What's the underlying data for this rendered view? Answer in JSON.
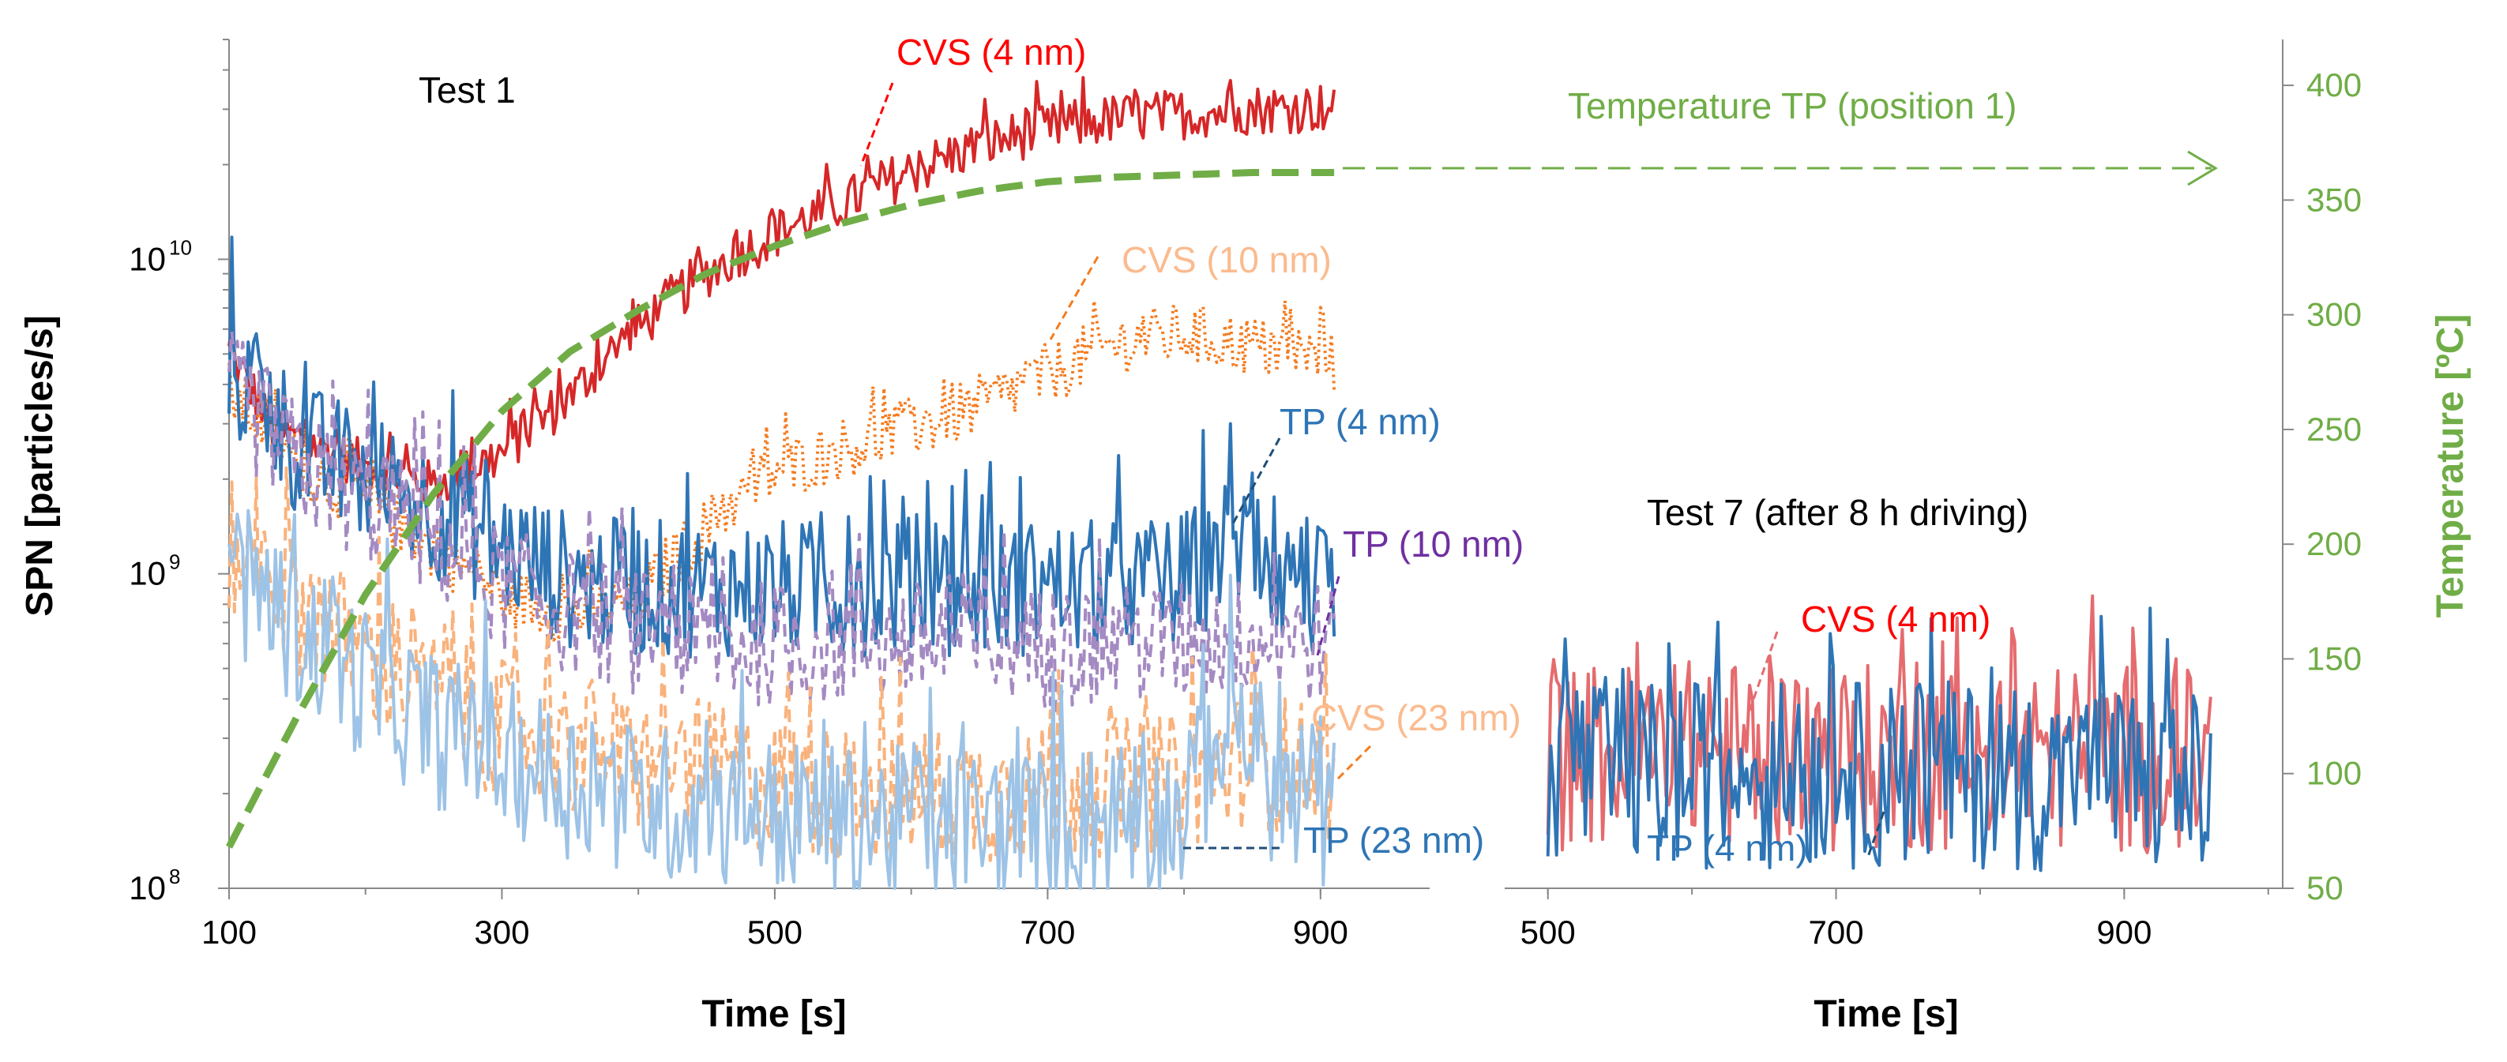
{
  "chart_data": {
    "type": "line",
    "y_axis": {
      "label": "SPN [particles/s]",
      "scale": "log",
      "range": [
        100000000.0,
        50000000000.0
      ],
      "ticks": [
        {
          "value": 100000000.0,
          "base": "10",
          "exp": "8"
        },
        {
          "value": 1000000000.0,
          "base": "10",
          "exp": "9"
        },
        {
          "value": 10000000000.0,
          "base": "10",
          "exp": "10"
        }
      ]
    },
    "y2_axis": {
      "label": "Temperature [ºC]",
      "range": [
        50,
        420
      ],
      "ticks": [
        "400",
        "350",
        "300",
        "250",
        "200",
        "150",
        "100",
        "50"
      ],
      "tick_values": [
        400,
        350,
        300,
        250,
        200,
        150,
        100,
        50
      ]
    },
    "panels": [
      {
        "title": "Test 1",
        "xlabel": "Time [s]",
        "xlim": [
          100,
          980
        ],
        "x_ticks": [
          "100",
          "300",
          "500",
          "700",
          "900"
        ],
        "x_tick_values": [
          100,
          300,
          500,
          700,
          900
        ],
        "series": [
          {
            "name": "CVS (4 nm)",
            "color": "#d62728",
            "style": "solid",
            "points": [
              [
                100,
                5000000000.0
              ],
              [
                130,
                2900000000.0
              ],
              [
                200,
                2200000000.0
              ],
              [
                250,
                1900000000.0
              ],
              [
                300,
                2400000000.0
              ],
              [
                350,
                3600000000.0
              ],
              [
                400,
                6000000000.0
              ],
              [
                450,
                9000000000.0
              ],
              [
                500,
                12000000000.0
              ],
              [
                550,
                15000000000.0
              ],
              [
                600,
                19000000000.0
              ],
              [
                650,
                23000000000.0
              ],
              [
                700,
                26000000000.0
              ],
              [
                750,
                28000000000.0
              ],
              [
                800,
                29000000000.0
              ],
              [
                850,
                30000000000.0
              ],
              [
                910,
                30500000000.0
              ]
            ]
          },
          {
            "name": "CVS (10 nm)",
            "color": "#f47c20",
            "style": "dotted",
            "points": [
              [
                100,
                3800000000.0
              ],
              [
                150,
                2200000000.0
              ],
              [
                200,
                1700000000.0
              ],
              [
                250,
                1200000000.0
              ],
              [
                300,
                850000000.0
              ],
              [
                350,
                750000000.0
              ],
              [
                400,
                800000000.0
              ],
              [
                450,
                1400000000.0
              ],
              [
                500,
                2100000000.0
              ],
              [
                550,
                2500000000.0
              ],
              [
                600,
                2900000000.0
              ],
              [
                650,
                3400000000.0
              ],
              [
                700,
                4300000000.0
              ],
              [
                750,
                5400000000.0
              ],
              [
                800,
                5800000000.0
              ],
              [
                850,
                5300000000.0
              ],
              [
                910,
                4700000000.0
              ]
            ]
          },
          {
            "name": "TP (4 nm)",
            "color": "#2e75b6",
            "style": "solid",
            "points": [
              [
                100,
                4500000000.0
              ],
              [
                150,
                2500000000.0
              ],
              [
                200,
                2000000000.0
              ],
              [
                250,
                1600000000.0
              ],
              [
                300,
                1200000000.0
              ],
              [
                350,
                950000000.0
              ],
              [
                400,
                900000000.0
              ],
              [
                450,
                900000000.0
              ],
              [
                500,
                900000000.0
              ],
              [
                550,
                900000000.0
              ],
              [
                600,
                920000000.0
              ],
              [
                650,
                900000000.0
              ],
              [
                700,
                900000000.0
              ],
              [
                750,
                900000000.0
              ],
              [
                800,
                950000000.0
              ],
              [
                840,
                1300000000.0
              ],
              [
                870,
                1000000000.0
              ],
              [
                910,
                800000000.0
              ]
            ]
          },
          {
            "name": "TP (10 nm)",
            "color": "#a48ac2",
            "style": "dashed",
            "points": [
              [
                100,
                3800000000.0
              ],
              [
                150,
                2200000000.0
              ],
              [
                200,
                1700000000.0
              ],
              [
                250,
                1300000000.0
              ],
              [
                300,
                900000000.0
              ],
              [
                350,
                750000000.0
              ],
              [
                400,
                650000000.0
              ],
              [
                450,
                600000000.0
              ],
              [
                500,
                600000000.0
              ],
              [
                600,
                600000000.0
              ],
              [
                700,
                580000000.0
              ],
              [
                800,
                600000000.0
              ],
              [
                850,
                620000000.0
              ],
              [
                910,
                600000000.0
              ]
            ]
          },
          {
            "name": "CVS (23 nm)",
            "color": "#f9b27c",
            "style": "dashed",
            "points": [
              [
                100,
                1200000000.0
              ],
              [
                150,
                800000000.0
              ],
              [
                200,
                550000000.0
              ],
              [
                250,
                400000000.0
              ],
              [
                300,
                320000000.0
              ],
              [
                350,
                280000000.0
              ],
              [
                400,
                250000000.0
              ],
              [
                450,
                240000000.0
              ],
              [
                500,
                210000000.0
              ],
              [
                550,
                200000000.0
              ],
              [
                600,
                200000000.0
              ],
              [
                700,
                200000000.0
              ],
              [
                800,
                220000000.0
              ],
              [
                850,
                260000000.0
              ],
              [
                910,
                230000000.0
              ]
            ]
          },
          {
            "name": "TP (23 nm)",
            "color": "#9dc3e6",
            "style": "solid",
            "points": [
              [
                100,
                1000000000.0
              ],
              [
                150,
                650000000.0
              ],
              [
                200,
                450000000.0
              ],
              [
                250,
                320000000.0
              ],
              [
                300,
                260000000.0
              ],
              [
                350,
                220000000.0
              ],
              [
                400,
                190000000.0
              ],
              [
                450,
                180000000.0
              ],
              [
                500,
                170000000.0
              ],
              [
                550,
                160000000.0
              ],
              [
                600,
                160000000.0
              ],
              [
                700,
                160000000.0
              ],
              [
                800,
                170000000.0
              ],
              [
                840,
                350000000.0
              ],
              [
                870,
                180000000.0
              ],
              [
                910,
                170000000.0
              ]
            ]
          },
          {
            "name": "Temperature TP (position 1)",
            "color": "#70ad47",
            "style": "dashed",
            "axis": "y2",
            "points": [
              [
                100,
                68
              ],
              [
                150,
                125
              ],
              [
                200,
                178
              ],
              [
                250,
                222
              ],
              [
                300,
                258
              ],
              [
                350,
                284
              ],
              [
                400,
                302
              ],
              [
                450,
                318
              ],
              [
                500,
                330
              ],
              [
                550,
                340
              ],
              [
                600,
                348
              ],
              [
                650,
                354
              ],
              [
                700,
                358
              ],
              [
                750,
                360
              ],
              [
                800,
                361
              ],
              [
                850,
                362
              ],
              [
                910,
                362
              ]
            ]
          }
        ]
      },
      {
        "title": "Test 7 (after 8 h driving)",
        "xlabel": "Time [s]",
        "xlim": [
          470,
          1010
        ],
        "x_ticks": [
          "500",
          "700",
          "900"
        ],
        "x_tick_values": [
          500,
          700,
          900
        ],
        "series": [
          {
            "name": "CVS (4 nm)",
            "color": "#e56b6f",
            "style": "solid",
            "points": [
              [
                500,
                260000000.0
              ],
              [
                600,
                270000000.0
              ],
              [
                700,
                260000000.0
              ],
              [
                800,
                260000000.0
              ],
              [
                900,
                260000000.0
              ],
              [
                960,
                250000000.0
              ]
            ]
          },
          {
            "name": "TP (4 nm)",
            "color": "#2e75b6",
            "style": "solid",
            "points": [
              [
                500,
                240000000.0
              ],
              [
                600,
                230000000.0
              ],
              [
                700,
                230000000.0
              ],
              [
                800,
                230000000.0
              ],
              [
                900,
                220000000.0
              ],
              [
                960,
                210000000.0
              ]
            ]
          }
        ]
      }
    ],
    "annotations": [
      {
        "text": "CVS (4 nm)",
        "color": "#ff0000"
      },
      {
        "text": "CVS (10 nm)",
        "color": "#fbbb8f"
      },
      {
        "text": "TP (4 nm)",
        "color": "#2e75b6"
      },
      {
        "text": "TP (10 nm)",
        "color": "#7030a0"
      },
      {
        "text": "CVS (23 nm)",
        "color": "#fbbb8f"
      },
      {
        "text": "TP (23 nm)",
        "color": "#2e75b6"
      },
      {
        "text": "Temperature TP (position 1)",
        "color": "#70ad47"
      },
      {
        "text": "CVS (4 nm)",
        "color": "#ff0000"
      },
      {
        "text": "TP (4 nm)",
        "color": "#2e75b6"
      }
    ]
  }
}
